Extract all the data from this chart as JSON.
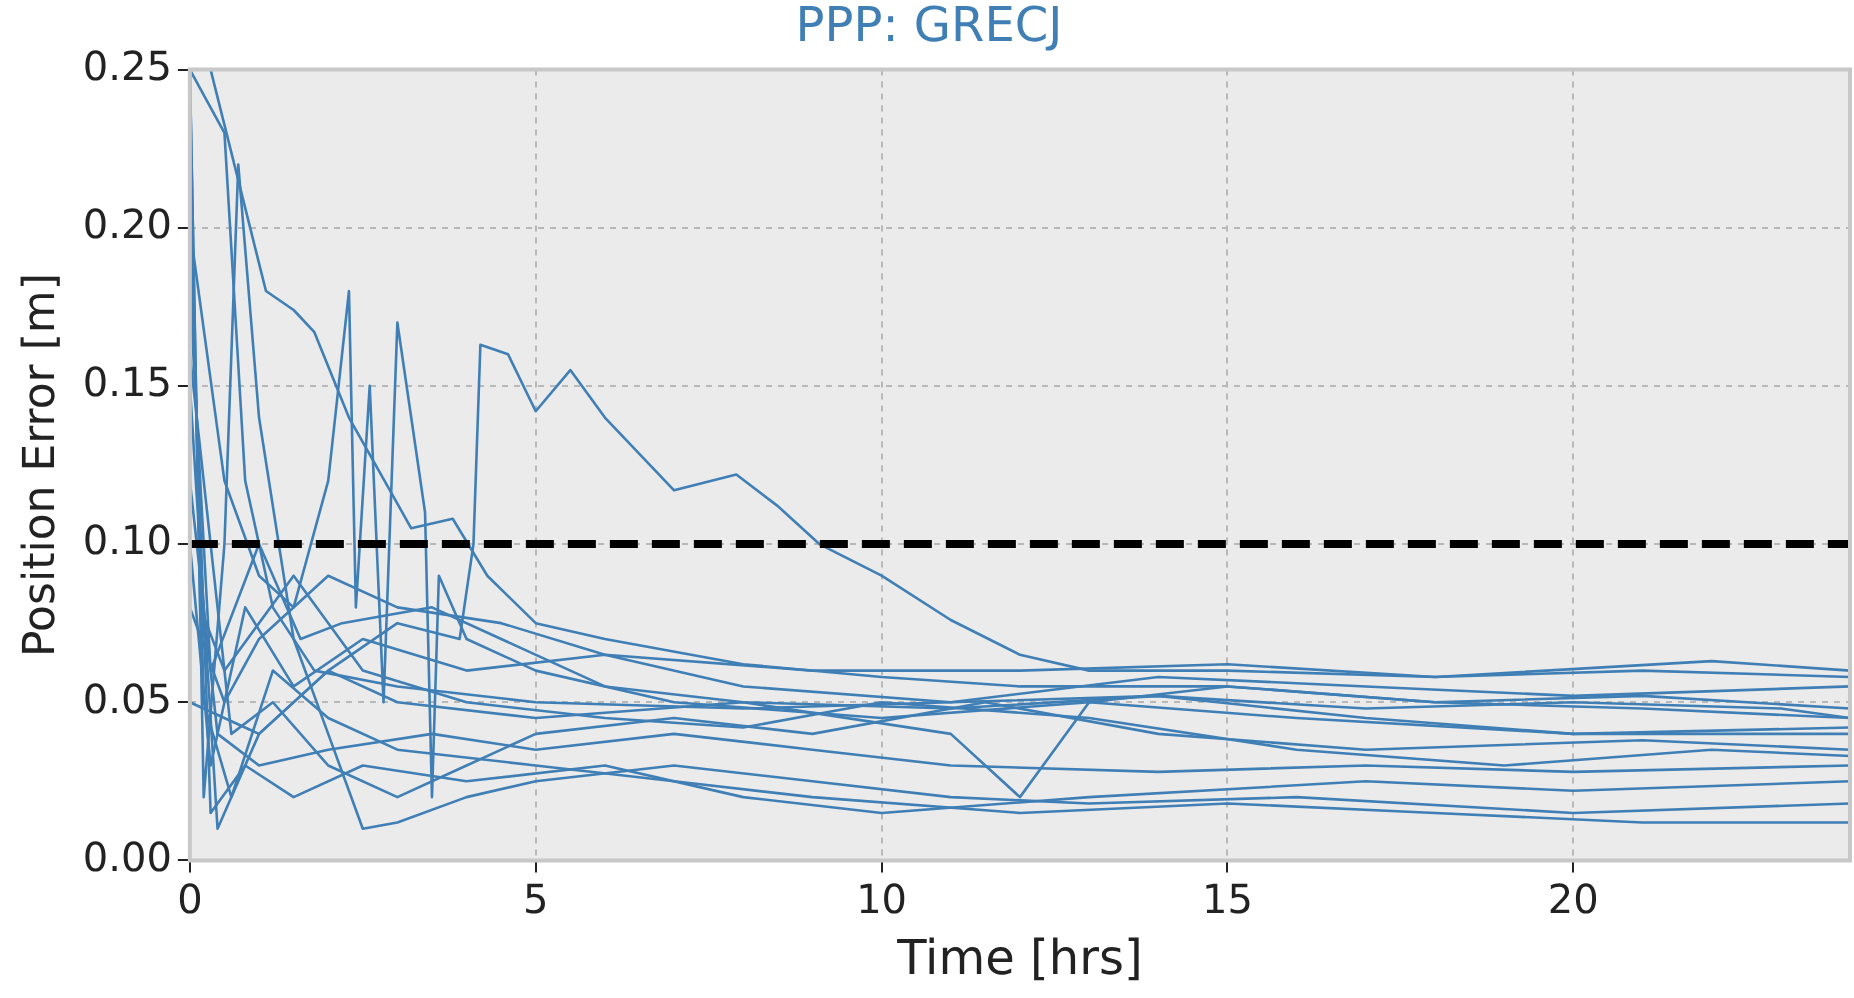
{
  "chart_data": {
    "type": "line",
    "title": "PPP: GRECJ",
    "xlabel": "Time [hrs]",
    "ylabel": "Position Error [m]",
    "xlim": [
      0,
      24
    ],
    "xticks": [
      0,
      5,
      10,
      15,
      20
    ],
    "ylim": [
      0,
      0.25
    ],
    "yticks": [
      {
        "value": 0,
        "label": "0.00"
      },
      {
        "value": 0.05,
        "label": "0.05"
      },
      {
        "value": 0.1,
        "label": "0.10"
      },
      {
        "value": 0.15,
        "label": "0.15"
      },
      {
        "value": 0.2,
        "label": "0.20"
      },
      {
        "value": 0.25,
        "label": "0.25"
      }
    ],
    "grid": true,
    "marker": "none",
    "line_style": "solid",
    "legend": false,
    "ref_lines": [
      {
        "axis": "y",
        "value": 0.1,
        "color": "#000000",
        "line_style": "dashed"
      }
    ],
    "series": [
      {
        "color": "#3f7fb5",
        "x": [
          0,
          0.3,
          1.1,
          1.5,
          1.8,
          2.3,
          3.2,
          3.8,
          4.3,
          5,
          6,
          8,
          10,
          12,
          15,
          18,
          21,
          24
        ],
        "values": [
          0.25,
          0.25,
          0.18,
          0.174,
          0.167,
          0.14,
          0.105,
          0.108,
          0.09,
          0.075,
          0.07,
          0.062,
          0.058,
          0.055,
          0.055,
          0.05,
          0.052,
          0.048
        ]
      },
      {
        "color": "#3f7fb5",
        "x": [
          0,
          1,
          2,
          3,
          3.9,
          4.1,
          4.2,
          4.6,
          5,
          5.5,
          6,
          7,
          7.9,
          8.5,
          9.1,
          10,
          11,
          12,
          13,
          15,
          18,
          21,
          24
        ],
        "values": [
          0.05,
          0.04,
          0.06,
          0.075,
          0.07,
          0.1,
          0.163,
          0.16,
          0.142,
          0.155,
          0.14,
          0.117,
          0.122,
          0.112,
          0.1,
          0.09,
          0.076,
          0.065,
          0.06,
          0.06,
          0.058,
          0.06,
          0.058
        ]
      },
      {
        "color": "#3f7fb5",
        "x": [
          0,
          0.5,
          1,
          1.5,
          2,
          2.3,
          2.4,
          2.6,
          2.8,
          3,
          3.2,
          3.4,
          3.5,
          3.6,
          4,
          5,
          7,
          10,
          13,
          16,
          20,
          24
        ],
        "values": [
          0.2,
          0.12,
          0.09,
          0.08,
          0.12,
          0.18,
          0.08,
          0.15,
          0.05,
          0.17,
          0.14,
          0.11,
          0.02,
          0.09,
          0.07,
          0.06,
          0.05,
          0.045,
          0.05,
          0.045,
          0.04,
          0.04
        ]
      },
      {
        "color": "#3f7fb5",
        "x": [
          0,
          0.2,
          0.5,
          0.7,
          1,
          1.5,
          2,
          2.5,
          3,
          4,
          5,
          7,
          9,
          11,
          13,
          16,
          20,
          24
        ],
        "values": [
          0.25,
          0.02,
          0.1,
          0.22,
          0.14,
          0.07,
          0.04,
          0.01,
          0.012,
          0.02,
          0.025,
          0.03,
          0.025,
          0.02,
          0.018,
          0.02,
          0.015,
          0.018
        ]
      },
      {
        "color": "#3f7fb5",
        "x": [
          0,
          0.4,
          1,
          2,
          3,
          5,
          8,
          11,
          12,
          13,
          15,
          18,
          21,
          24
        ],
        "values": [
          0.15,
          0.01,
          0.04,
          0.06,
          0.05,
          0.045,
          0.05,
          0.04,
          0.02,
          0.05,
          0.055,
          0.05,
          0.048,
          0.045
        ]
      },
      {
        "color": "#3f7fb5",
        "x": [
          0,
          0.3,
          0.8,
          1.5,
          2.5,
          4,
          6,
          9,
          12,
          15,
          18,
          22,
          24
        ],
        "values": [
          0.1,
          0.03,
          0.08,
          0.055,
          0.07,
          0.06,
          0.065,
          0.06,
          0.06,
          0.062,
          0.058,
          0.063,
          0.06
        ]
      },
      {
        "color": "#3f7fb5",
        "x": [
          0,
          0.2,
          0.6,
          1.2,
          2,
          3,
          5,
          7,
          9,
          12,
          15,
          18,
          21,
          24
        ],
        "values": [
          0.22,
          0.05,
          0.02,
          0.06,
          0.045,
          0.035,
          0.03,
          0.025,
          0.02,
          0.015,
          0.018,
          0.015,
          0.012,
          0.012
        ]
      },
      {
        "color": "#3f7fb5",
        "x": [
          0,
          0.3,
          1,
          1.6,
          2.2,
          3.5,
          4.5,
          6,
          8,
          11,
          14,
          17,
          20,
          24
        ],
        "values": [
          0.18,
          0.06,
          0.1,
          0.07,
          0.075,
          0.08,
          0.07,
          0.055,
          0.05,
          0.048,
          0.052,
          0.045,
          0.04,
          0.042
        ]
      },
      {
        "color": "#3f7fb5",
        "x": [
          0,
          0.4,
          1,
          2,
          3.5,
          5,
          7,
          9,
          11,
          14,
          17,
          20,
          24
        ],
        "values": [
          0.12,
          0.04,
          0.03,
          0.035,
          0.04,
          0.035,
          0.04,
          0.035,
          0.03,
          0.028,
          0.03,
          0.028,
          0.03
        ]
      },
      {
        "color": "#3f7fb5",
        "x": [
          0,
          0.15,
          0.5,
          1.5,
          2.5,
          4,
          6,
          8,
          10,
          13,
          16,
          19,
          22,
          24
        ],
        "values": [
          0.25,
          0.08,
          0.06,
          0.09,
          0.06,
          0.05,
          0.045,
          0.042,
          0.05,
          0.045,
          0.035,
          0.03,
          0.035,
          0.033
        ]
      },
      {
        "color": "#3f7fb5",
        "x": [
          0,
          0.3,
          0.8,
          1.5,
          2.5,
          4,
          6,
          8,
          10,
          13,
          17,
          20,
          24
        ],
        "values": [
          0.2,
          0.015,
          0.03,
          0.02,
          0.03,
          0.025,
          0.03,
          0.02,
          0.015,
          0.02,
          0.025,
          0.022,
          0.025
        ]
      },
      {
        "color": "#3f7fb5",
        "x": [
          0,
          0.5,
          1,
          2,
          3,
          4.5,
          6,
          8,
          11,
          14,
          17,
          20,
          23,
          24
        ],
        "values": [
          0.08,
          0.05,
          0.07,
          0.09,
          0.08,
          0.075,
          0.065,
          0.055,
          0.05,
          0.052,
          0.048,
          0.05,
          0.048,
          0.045
        ]
      },
      {
        "color": "#3f7fb5",
        "x": [
          0,
          0.3,
          0.6,
          1.2,
          2,
          3,
          4,
          5,
          7,
          9,
          11.5,
          14,
          17,
          21,
          24
        ],
        "values": [
          0.16,
          0.1,
          0.04,
          0.05,
          0.03,
          0.02,
          0.03,
          0.04,
          0.045,
          0.04,
          0.05,
          0.04,
          0.035,
          0.038,
          0.035
        ]
      },
      {
        "color": "#3f7fb5",
        "x": [
          0,
          0.5,
          0.8,
          1.2,
          1.8,
          3,
          5,
          8,
          11,
          14,
          17,
          20,
          24
        ],
        "values": [
          0.25,
          0.23,
          0.12,
          0.08,
          0.06,
          0.055,
          0.05,
          0.048,
          0.05,
          0.058,
          0.055,
          0.052,
          0.055
        ]
      }
    ]
  }
}
